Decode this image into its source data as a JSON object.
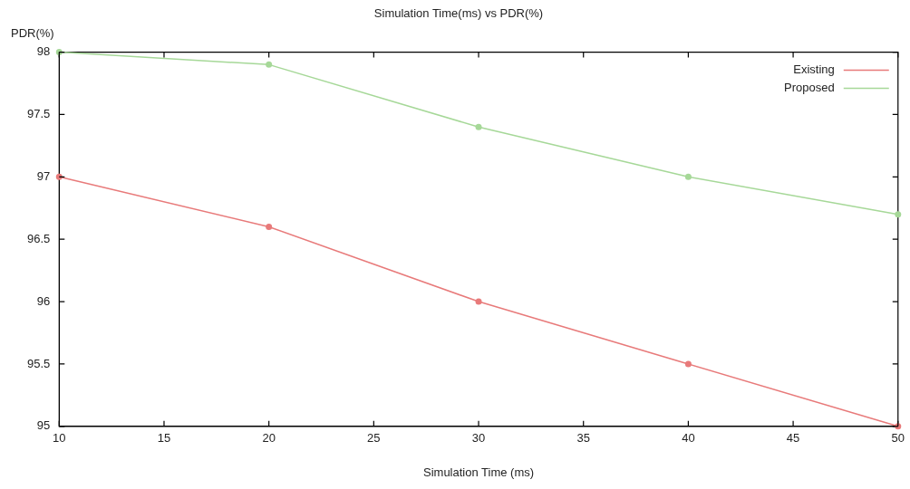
{
  "chart_data": {
    "type": "line",
    "title": "Simulation Time(ms) vs PDR(%)",
    "xlabel": "Simulation Time (ms)",
    "ylabel": "PDR(%)",
    "x": [
      10,
      20,
      30,
      40,
      50
    ],
    "series": [
      {
        "name": "Existing",
        "color": "#e87a7a",
        "values": [
          97,
          96.6,
          96,
          95.5,
          95
        ]
      },
      {
        "name": "Proposed",
        "color": "#a6d898",
        "values": [
          98,
          97.9,
          97.4,
          97,
          96.7
        ]
      }
    ],
    "xlim": [
      10,
      50
    ],
    "xticks": [
      10,
      15,
      20,
      25,
      30,
      35,
      40,
      45,
      50
    ],
    "ylim": [
      95,
      98
    ],
    "yticks": [
      95,
      95.5,
      96,
      96.5,
      97,
      97.5,
      98
    ],
    "grid": false,
    "legend": "top right",
    "marker": "circle",
    "line_style": "solid"
  }
}
